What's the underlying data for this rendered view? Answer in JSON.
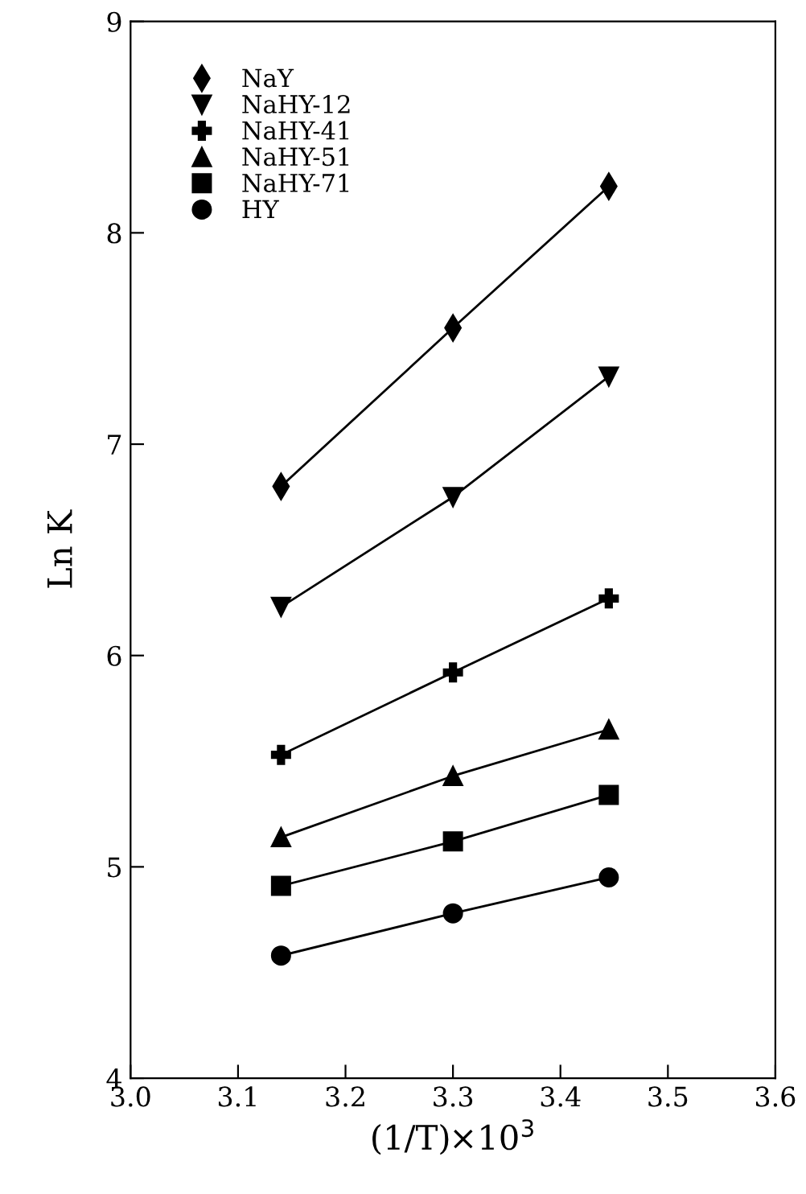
{
  "chart_data": {
    "type": "line",
    "xlabel": "(1/T)×10$^{3}$",
    "ylabel": "Ln K",
    "x": [
      3.14,
      3.3,
      3.445
    ],
    "series": [
      {
        "name": "NaY",
        "color": "#000000",
        "marker": "diamond",
        "values": [
          6.8,
          7.55,
          8.22
        ]
      },
      {
        "name": "NaHY-12",
        "color": "#000000",
        "marker": "triangle_down",
        "values": [
          6.23,
          6.75,
          7.32
        ]
      },
      {
        "name": "NaHY-41",
        "color": "#000000",
        "marker": "cross",
        "values": [
          5.53,
          5.92,
          6.27
        ]
      },
      {
        "name": "NaHY-51",
        "color": "#000000",
        "marker": "triangle",
        "values": [
          5.14,
          5.43,
          5.65
        ]
      },
      {
        "name": "NaHY-71",
        "color": "#000000",
        "marker": "square",
        "values": [
          4.91,
          5.12,
          5.34
        ]
      },
      {
        "name": "HY",
        "color": "#000000",
        "marker": "circle",
        "values": [
          4.58,
          4.78,
          4.95
        ]
      }
    ],
    "xlim": [
      3.0,
      3.6
    ],
    "xticks": [
      {
        "value": 3.0,
        "label": "3.0"
      },
      3.1,
      3.2,
      3.3,
      3.4,
      3.5,
      {
        "value": 3.6,
        "label": "3.6"
      }
    ],
    "ylim": [
      4,
      9
    ],
    "yticks": [
      4,
      5,
      6,
      7,
      8,
      9
    ],
    "grid": false,
    "legend": "top left",
    "line_style": "solid"
  }
}
